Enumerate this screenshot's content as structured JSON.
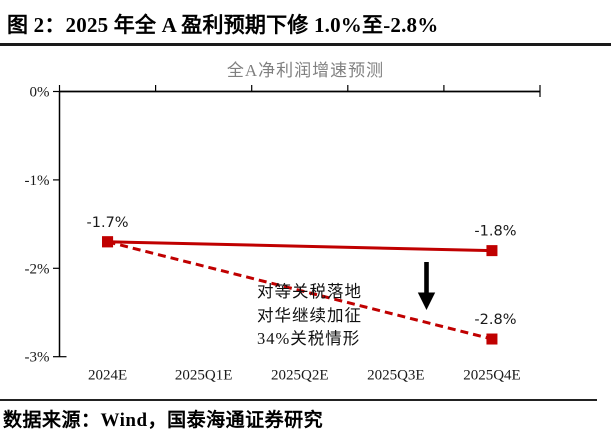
{
  "header": {
    "title": "图 2：2025 年全 A 盈利预期下修 1.0%至-2.8%"
  },
  "chart_data": {
    "type": "line",
    "title": "全A净利润增速预测",
    "categories": [
      "2024E",
      "2025Q1E",
      "2025Q2E",
      "2025Q3E",
      "2025Q4E"
    ],
    "ylim": [
      -3,
      0
    ],
    "grid": false,
    "legend": "none",
    "accent_color": "#C00000",
    "yticks": [
      {
        "value": 0,
        "label": "0%"
      },
      {
        "value": -1,
        "label": "-1%"
      },
      {
        "value": -2,
        "label": "-2%"
      },
      {
        "value": -3,
        "label": "-3%"
      }
    ],
    "series": [
      {
        "style": "solid",
        "color": "#C00000",
        "points": [
          {
            "x": 0,
            "y": -1.7
          },
          {
            "x": 4,
            "y": -1.8
          }
        ],
        "point_labels": [
          "-1.7%",
          "-1.8%"
        ]
      },
      {
        "style": "dashed",
        "color": "#C00000",
        "points": [
          {
            "x": 0,
            "y": -1.7
          },
          {
            "x": 4,
            "y": -2.8
          }
        ],
        "point_labels": [
          "",
          "-2.8%"
        ]
      }
    ],
    "annotation": {
      "lines": [
        "对等关税落地",
        "对华继续加征",
        "34%关税情形"
      ]
    },
    "arrow_icon": "down-arrow"
  },
  "footer": {
    "source": "数据来源：Wind，国泰海通证券研究"
  }
}
